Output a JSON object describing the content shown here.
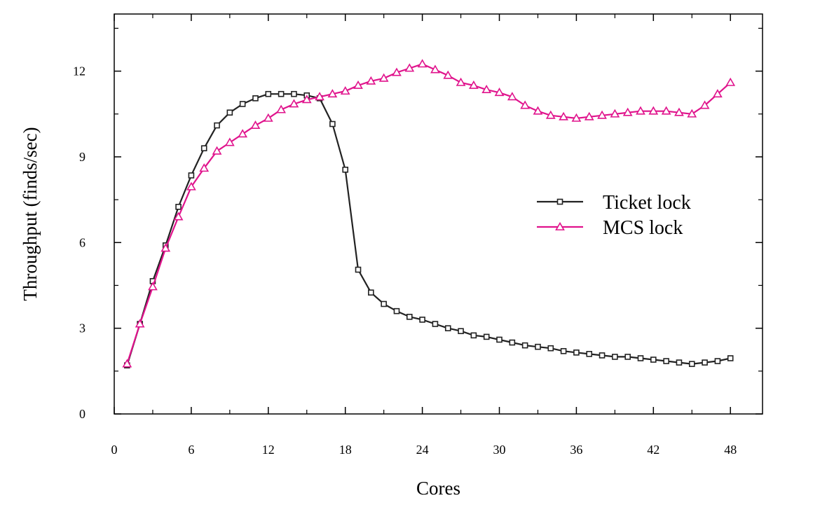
{
  "chart_data": {
    "type": "line",
    "title": "",
    "xlabel": "Cores",
    "ylabel": "Throughput (finds/sec)",
    "xlim": [
      0,
      50.5
    ],
    "ylim": [
      0,
      14
    ],
    "xticks": [
      0,
      6,
      12,
      18,
      24,
      30,
      36,
      42,
      48
    ],
    "yticks": [
      0,
      3,
      6,
      9,
      12
    ],
    "xtick_labels": [
      "0",
      "6",
      "12",
      "18",
      "24",
      "30",
      "36",
      "42",
      "48"
    ],
    "ytick_labels": [
      "0",
      "3",
      "6",
      "9",
      "12"
    ],
    "grid": false,
    "legend_position": "center-right",
    "x": [
      1,
      2,
      3,
      4,
      5,
      6,
      7,
      8,
      9,
      10,
      11,
      12,
      13,
      14,
      15,
      16,
      17,
      18,
      19,
      20,
      21,
      22,
      23,
      24,
      25,
      26,
      27,
      28,
      29,
      30,
      31,
      32,
      33,
      34,
      35,
      36,
      37,
      38,
      39,
      40,
      41,
      42,
      43,
      44,
      45,
      46,
      47,
      48
    ],
    "series": [
      {
        "name": "Ticket lock",
        "color": "#222222",
        "marker": "square",
        "values": [
          1.7,
          3.15,
          4.65,
          5.9,
          7.25,
          8.35,
          9.3,
          10.1,
          10.55,
          10.85,
          11.05,
          11.2,
          11.2,
          11.2,
          11.15,
          11.05,
          10.15,
          8.55,
          5.05,
          4.25,
          3.85,
          3.6,
          3.4,
          3.3,
          3.15,
          3.0,
          2.9,
          2.75,
          2.7,
          2.6,
          2.5,
          2.4,
          2.35,
          2.3,
          2.2,
          2.15,
          2.1,
          2.05,
          2.0,
          2.0,
          1.95,
          1.9,
          1.85,
          1.8,
          1.75,
          1.8,
          1.85,
          1.95
        ]
      },
      {
        "name": "MCS lock",
        "color": "#e0138c",
        "marker": "triangle",
        "values": [
          1.75,
          3.15,
          4.45,
          5.8,
          6.9,
          7.95,
          8.6,
          9.2,
          9.5,
          9.8,
          10.1,
          10.35,
          10.65,
          10.85,
          11.0,
          11.1,
          11.2,
          11.3,
          11.5,
          11.65,
          11.75,
          11.95,
          12.1,
          12.25,
          12.05,
          11.85,
          11.6,
          11.5,
          11.35,
          11.25,
          11.1,
          10.8,
          10.6,
          10.45,
          10.4,
          10.35,
          10.4,
          10.45,
          10.5,
          10.55,
          10.6,
          10.6,
          10.6,
          10.55,
          10.5,
          10.8,
          11.2,
          11.6
        ]
      }
    ]
  }
}
